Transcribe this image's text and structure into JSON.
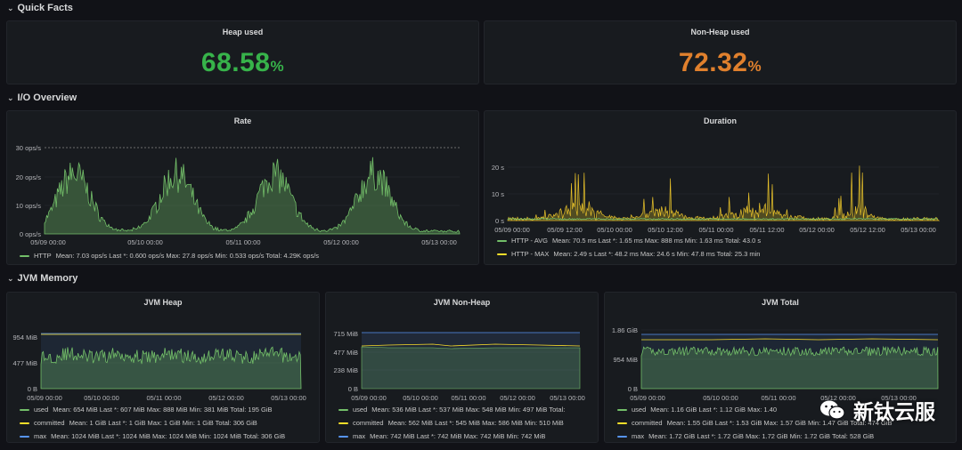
{
  "rows": {
    "quick_facts": "Quick Facts",
    "io_overview": "I/O Overview",
    "jvm_memory": "JVM Memory"
  },
  "heap_used": {
    "title": "Heap used",
    "value": "68.58",
    "unit": "%",
    "color": "#37b34a"
  },
  "non_heap_used": {
    "title": "Non-Heap used",
    "value": "72.32",
    "unit": "%",
    "color": "#e0802d"
  },
  "rate": {
    "title": "Rate",
    "y_ticks": [
      "30 ops/s",
      "20 ops/s",
      "10 ops/s",
      "0 ops/s"
    ],
    "x_ticks": [
      "05/09 00:00",
      "05/10 00:00",
      "05/11 00:00",
      "05/12 00:00",
      "05/13 00:00"
    ],
    "legend": [
      {
        "name": "HTTP",
        "color": "#73bf69",
        "stats": "Mean: 7.03 ops/s   Last *: 0.600 ops/s   Max: 27.8 ops/s   Min: 0.533 ops/s   Total: 4.29K ops/s"
      }
    ]
  },
  "duration": {
    "title": "Duration",
    "y_ticks": [
      "20 s",
      "10 s",
      "0 s"
    ],
    "x_ticks": [
      "05/09 00:00",
      "05/09 12:00",
      "05/10 00:00",
      "05/10 12:00",
      "05/11 00:00",
      "05/11 12:00",
      "05/12 00:00",
      "05/12 12:00",
      "05/13 00:00"
    ],
    "legend": [
      {
        "name": "HTTP - AVG",
        "color": "#73bf69",
        "stats": "Mean: 70.5 ms   Last *: 1.65 ms   Max: 888 ms   Min: 1.63 ms   Total: 43.0 s"
      },
      {
        "name": "HTTP - MAX",
        "color": "#fade2a",
        "stats": "Mean: 2.49 s   Last *: 48.2 ms   Max: 24.6 s   Min: 47.8 ms   Total: 25.3 min"
      }
    ]
  },
  "jvm_heap": {
    "title": "JVM Heap",
    "y_ticks": [
      "954 MiB",
      "477 MiB",
      "0 B"
    ],
    "x_ticks": [
      "05/09 00:00",
      "05/10 00:00",
      "05/11 00:00",
      "05/12 00:00",
      "05/13 00:00"
    ],
    "legend": [
      {
        "name": "used",
        "color": "#73bf69",
        "stats": "Mean: 654 MiB   Last *: 607 MiB   Max: 888 MiB   Min: 381 MiB   Total: 195 GiB"
      },
      {
        "name": "committed",
        "color": "#fade2a",
        "stats": "Mean: 1 GiB   Last *: 1 GiB   Max: 1 GiB   Min: 1 GiB   Total: 306 GiB"
      },
      {
        "name": "max",
        "color": "#5794f2",
        "stats": "Mean: 1024 MiB   Last *: 1024 MiB   Max: 1024 MiB   Min: 1024 MiB   Total: 306 GiB"
      }
    ]
  },
  "jvm_non_heap": {
    "title": "JVM Non-Heap",
    "y_ticks": [
      "715 MiB",
      "477 MiB",
      "238 MiB",
      "0 B"
    ],
    "x_ticks": [
      "05/09 00:00",
      "05/10 00:00",
      "05/11 00:00",
      "05/12 00:00",
      "05/13 00:00"
    ],
    "legend": [
      {
        "name": "used",
        "color": "#73bf69",
        "stats": "Mean: 536 MiB   Last *: 537 MiB   Max: 548 MiB   Min: 497 MiB   Total:"
      },
      {
        "name": "committed",
        "color": "#fade2a",
        "stats": "Mean: 562 MiB   Last *: 545 MiB   Max: 586 MiB   Min: 510 MiB"
      },
      {
        "name": "max",
        "color": "#5794f2",
        "stats": "Mean: 742 MiB   Last *: 742 MiB   Max: 742 MiB   Min: 742 MiB"
      }
    ]
  },
  "jvm_total": {
    "title": "JVM Total",
    "y_ticks": [
      "1.86 GiB",
      "954 MiB",
      "0 B"
    ],
    "x_ticks": [
      "05/09 00:00",
      "05/10 00:00",
      "05/11 00:00",
      "05/12 00:00",
      "05/13 00:00"
    ],
    "legend": [
      {
        "name": "used",
        "color": "#73bf69",
        "stats": "Mean: 1.16 GiB   Last *: 1.12 GiB   Max: 1.40"
      },
      {
        "name": "committed",
        "color": "#fade2a",
        "stats": "Mean: 1.55 GiB   Last *: 1.53 GiB   Max: 1.57 GiB   Min: 1.47 GiB   Total: 474 GiB"
      },
      {
        "name": "max",
        "color": "#5794f2",
        "stats": "Mean: 1.72 GiB   Last *: 1.72 GiB   Max: 1.72 GiB   Min: 1.72 GiB   Total: 528 GiB"
      }
    ]
  },
  "watermark": {
    "text": "新钛云服"
  }
}
